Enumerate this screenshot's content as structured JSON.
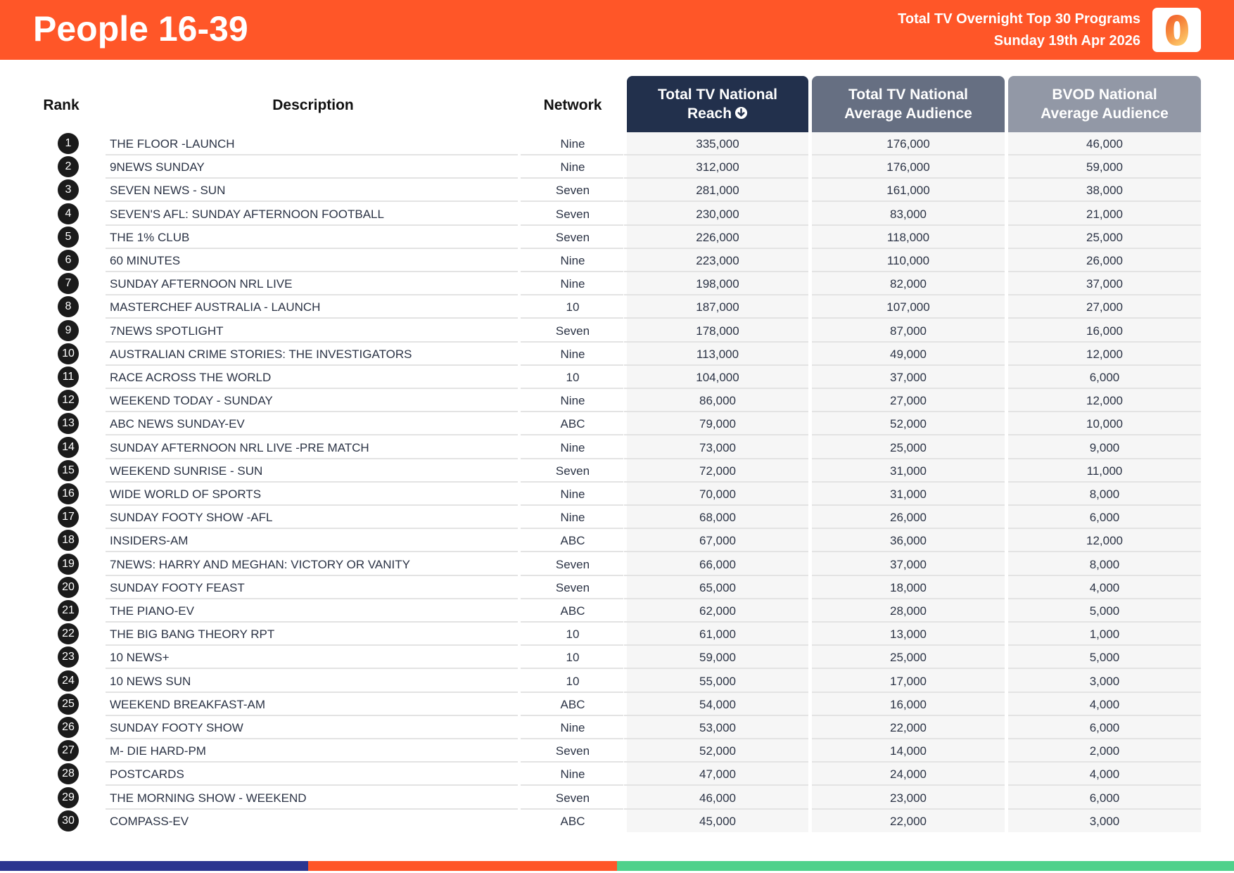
{
  "header": {
    "title": "People 16-39",
    "subtitle_line1": "Total TV Overnight Top 30 Programs",
    "subtitle_line2": "Sunday 19th Apr 2026",
    "logo_icon": "oztam-zero-logo-icon"
  },
  "colors": {
    "brand_orange": "#ff5628",
    "header_navy": "#22304c",
    "header_slate": "#666f82",
    "header_grey": "#9298a6",
    "footer_blue": "#2b3590",
    "footer_orange": "#ff5628",
    "footer_green": "#4fd18b"
  },
  "table": {
    "columns": {
      "rank": "Rank",
      "description": "Description",
      "network": "Network",
      "reach_line1": "Total TV National",
      "reach_line2": "Reach",
      "avg_line1": "Total TV National",
      "avg_line2": "Average Audience",
      "bvod_line1": "BVOD National",
      "bvod_line2": "Average Audience",
      "sort_icon": "sort-descending-icon"
    },
    "rows": [
      {
        "rank": "1",
        "description": "THE FLOOR -LAUNCH",
        "network": "Nine",
        "reach": "335,000",
        "avg": "176,000",
        "bvod": "46,000"
      },
      {
        "rank": "2",
        "description": "9NEWS SUNDAY",
        "network": "Nine",
        "reach": "312,000",
        "avg": "176,000",
        "bvod": "59,000"
      },
      {
        "rank": "3",
        "description": "SEVEN NEWS - SUN",
        "network": "Seven",
        "reach": "281,000",
        "avg": "161,000",
        "bvod": "38,000"
      },
      {
        "rank": "4",
        "description": "SEVEN'S AFL: SUNDAY AFTERNOON FOOTBALL",
        "network": "Seven",
        "reach": "230,000",
        "avg": "83,000",
        "bvod": "21,000"
      },
      {
        "rank": "5",
        "description": "THE 1% CLUB",
        "network": "Seven",
        "reach": "226,000",
        "avg": "118,000",
        "bvod": "25,000"
      },
      {
        "rank": "6",
        "description": "60 MINUTES",
        "network": "Nine",
        "reach": "223,000",
        "avg": "110,000",
        "bvod": "26,000"
      },
      {
        "rank": "7",
        "description": "SUNDAY AFTERNOON NRL LIVE",
        "network": "Nine",
        "reach": "198,000",
        "avg": "82,000",
        "bvod": "37,000"
      },
      {
        "rank": "8",
        "description": "MASTERCHEF AUSTRALIA - LAUNCH",
        "network": "10",
        "reach": "187,000",
        "avg": "107,000",
        "bvod": "27,000"
      },
      {
        "rank": "9",
        "description": "7NEWS SPOTLIGHT",
        "network": "Seven",
        "reach": "178,000",
        "avg": "87,000",
        "bvod": "16,000"
      },
      {
        "rank": "10",
        "description": "AUSTRALIAN CRIME STORIES: THE INVESTIGATORS",
        "network": "Nine",
        "reach": "113,000",
        "avg": "49,000",
        "bvod": "12,000"
      },
      {
        "rank": "11",
        "description": "RACE ACROSS THE WORLD",
        "network": "10",
        "reach": "104,000",
        "avg": "37,000",
        "bvod": "6,000"
      },
      {
        "rank": "12",
        "description": "WEEKEND TODAY - SUNDAY",
        "network": "Nine",
        "reach": "86,000",
        "avg": "27,000",
        "bvod": "12,000"
      },
      {
        "rank": "13",
        "description": "ABC NEWS SUNDAY-EV",
        "network": "ABC",
        "reach": "79,000",
        "avg": "52,000",
        "bvod": "10,000"
      },
      {
        "rank": "14",
        "description": "SUNDAY AFTERNOON NRL LIVE -PRE MATCH",
        "network": "Nine",
        "reach": "73,000",
        "avg": "25,000",
        "bvod": "9,000"
      },
      {
        "rank": "15",
        "description": "WEEKEND SUNRISE - SUN",
        "network": "Seven",
        "reach": "72,000",
        "avg": "31,000",
        "bvod": "11,000"
      },
      {
        "rank": "16",
        "description": "WIDE WORLD OF SPORTS",
        "network": "Nine",
        "reach": "70,000",
        "avg": "31,000",
        "bvod": "8,000"
      },
      {
        "rank": "17",
        "description": "SUNDAY FOOTY SHOW -AFL",
        "network": "Nine",
        "reach": "68,000",
        "avg": "26,000",
        "bvod": "6,000"
      },
      {
        "rank": "18",
        "description": "INSIDERS-AM",
        "network": "ABC",
        "reach": "67,000",
        "avg": "36,000",
        "bvod": "12,000"
      },
      {
        "rank": "19",
        "description": "7NEWS: HARRY AND MEGHAN: VICTORY OR VANITY",
        "network": "Seven",
        "reach": "66,000",
        "avg": "37,000",
        "bvod": "8,000"
      },
      {
        "rank": "20",
        "description": "SUNDAY FOOTY FEAST",
        "network": "Seven",
        "reach": "65,000",
        "avg": "18,000",
        "bvod": "4,000"
      },
      {
        "rank": "21",
        "description": "THE PIANO-EV",
        "network": "ABC",
        "reach": "62,000",
        "avg": "28,000",
        "bvod": "5,000"
      },
      {
        "rank": "22",
        "description": "THE BIG BANG THEORY RPT",
        "network": "10",
        "reach": "61,000",
        "avg": "13,000",
        "bvod": "1,000"
      },
      {
        "rank": "23",
        "description": "10 NEWS+",
        "network": "10",
        "reach": "59,000",
        "avg": "25,000",
        "bvod": "5,000"
      },
      {
        "rank": "24",
        "description": "10 NEWS SUN",
        "network": "10",
        "reach": "55,000",
        "avg": "17,000",
        "bvod": "3,000"
      },
      {
        "rank": "25",
        "description": "WEEKEND BREAKFAST-AM",
        "network": "ABC",
        "reach": "54,000",
        "avg": "16,000",
        "bvod": "4,000"
      },
      {
        "rank": "26",
        "description": "SUNDAY FOOTY SHOW",
        "network": "Nine",
        "reach": "53,000",
        "avg": "22,000",
        "bvod": "6,000"
      },
      {
        "rank": "27",
        "description": "M- DIE HARD-PM",
        "network": "Seven",
        "reach": "52,000",
        "avg": "14,000",
        "bvod": "2,000"
      },
      {
        "rank": "28",
        "description": "POSTCARDS",
        "network": "Nine",
        "reach": "47,000",
        "avg": "24,000",
        "bvod": "4,000"
      },
      {
        "rank": "29",
        "description": "THE MORNING SHOW - WEEKEND",
        "network": "Seven",
        "reach": "46,000",
        "avg": "23,000",
        "bvod": "6,000"
      },
      {
        "rank": "30",
        "description": "COMPASS-EV",
        "network": "ABC",
        "reach": "45,000",
        "avg": "22,000",
        "bvod": "3,000"
      }
    ]
  }
}
